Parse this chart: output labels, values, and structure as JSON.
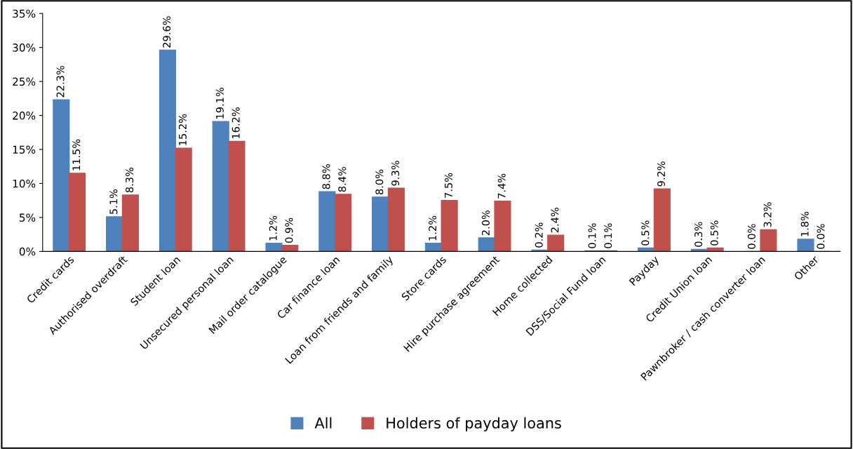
{
  "chart_data": {
    "type": "bar",
    "categories": [
      "Credit cards",
      "Authorised overdraft",
      "Student loan",
      "Unsecured personal loan",
      "Mail order catalogue",
      "Car finance loan",
      "Loan from friends and family",
      "Store cards",
      "Hire purchase agreement",
      "Home collected",
      "DSS/Social Fund loan",
      "Payday",
      "Credit Union loan",
      "Pawnbroker / cash converter loan",
      "Other"
    ],
    "series": [
      {
        "name": "All",
        "color": "#4f81bd",
        "values": [
          22.3,
          5.1,
          29.6,
          19.1,
          1.2,
          8.8,
          8.0,
          1.2,
          2.0,
          0.2,
          0.1,
          0.5,
          0.3,
          0.0,
          1.8
        ],
        "value_labels": [
          "22.3%",
          "5.1%",
          "29.6%",
          "19.1%",
          "1.2%",
          "8.8%",
          "8.0%",
          "1.2%",
          "2.0%",
          "0.2%",
          "0.1%",
          "0.5%",
          "0.3%",
          "0.0%",
          "1.8%"
        ]
      },
      {
        "name": "Holders of payday loans",
        "color": "#c0504d",
        "values": [
          11.5,
          8.3,
          15.2,
          16.2,
          0.9,
          8.4,
          9.3,
          7.5,
          7.4,
          2.4,
          0.1,
          9.2,
          0.5,
          3.2,
          0.0
        ],
        "value_labels": [
          "11.5%",
          "8.3%",
          "15.2%",
          "16.2%",
          "0.9%",
          "8.4%",
          "9.3%",
          "7.5%",
          "7.4%",
          "2.4%",
          "0.1%",
          "9.2%",
          "0.5%",
          "3.2%",
          "0.0%"
        ]
      }
    ],
    "ylim": [
      0,
      35
    ],
    "yticks": [
      {
        "value": 0,
        "label": "0%"
      },
      {
        "value": 5,
        "label": "5%"
      },
      {
        "value": 10,
        "label": "10%"
      },
      {
        "value": 15,
        "label": "15%"
      },
      {
        "value": 20,
        "label": "20%"
      },
      {
        "value": 25,
        "label": "25%"
      },
      {
        "value": 30,
        "label": "30%"
      },
      {
        "value": 35,
        "label": "35%"
      }
    ],
    "grid": false,
    "legend": "bottom"
  }
}
